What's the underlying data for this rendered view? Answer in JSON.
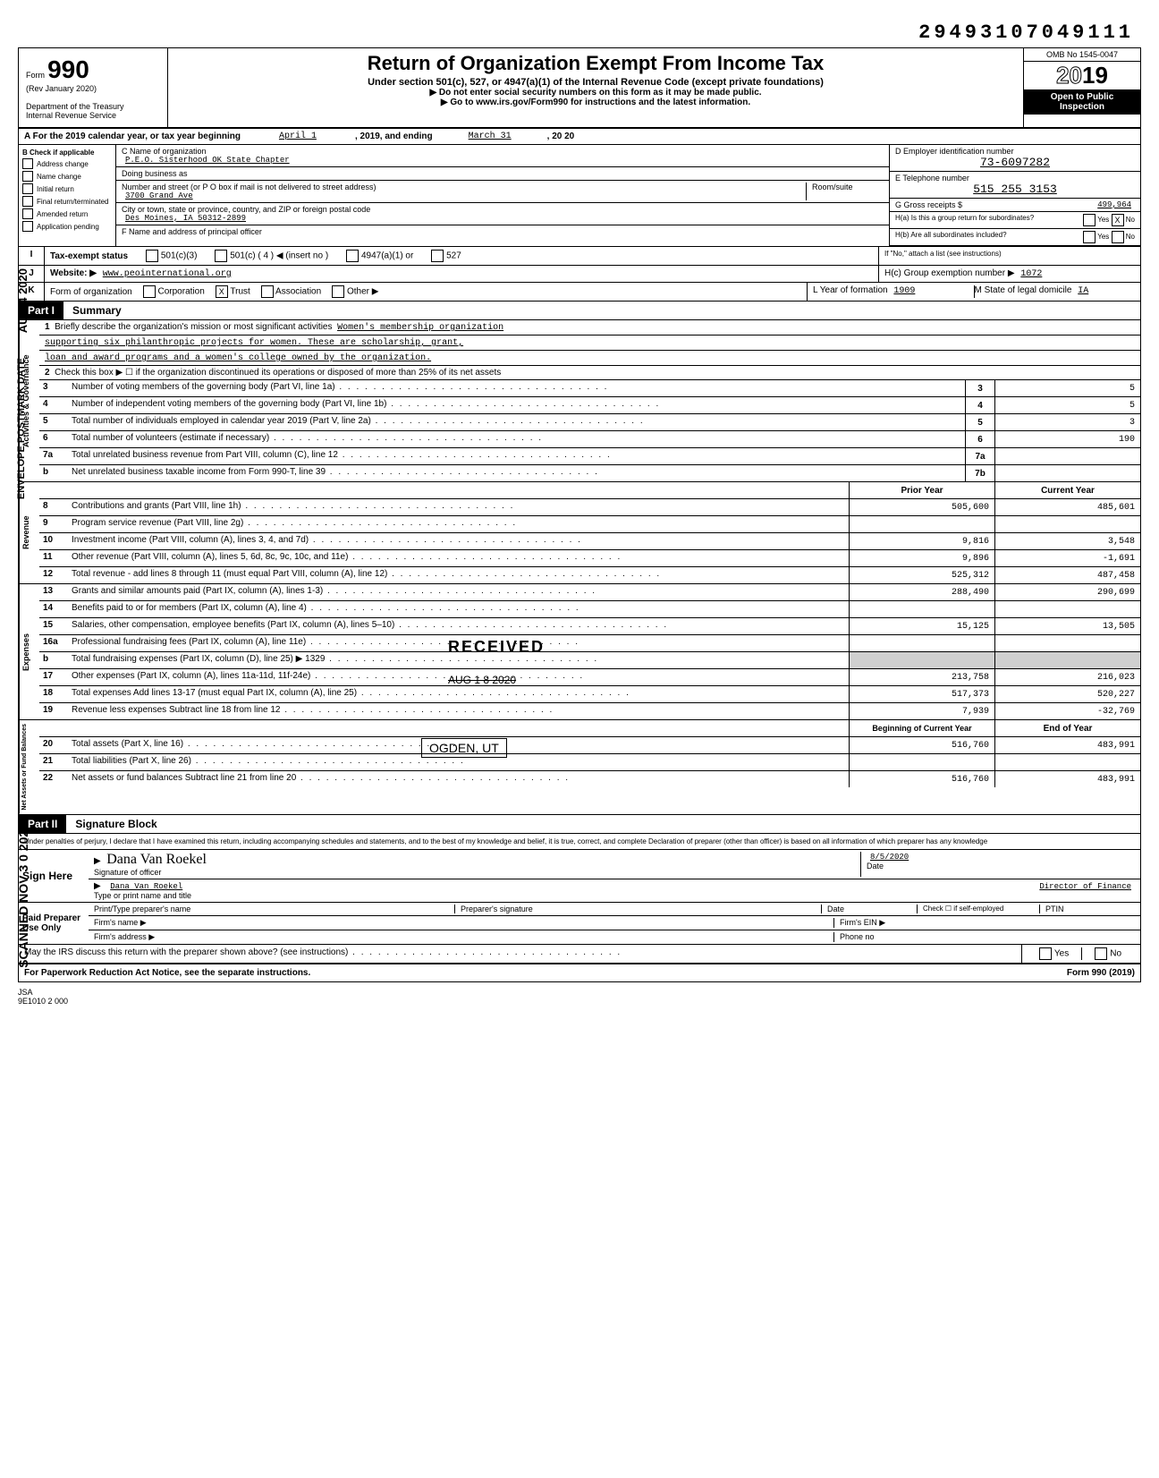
{
  "top_number": "29493107049111",
  "form": {
    "number": "990",
    "prefix": "Form",
    "rev": "(Rev January 2020)",
    "dept": "Department of the Treasury",
    "irs": "Internal Revenue Service"
  },
  "header": {
    "title": "Return of Organization Exempt From Income Tax",
    "subtitle": "Under section 501(c), 527, or 4947(a)(1) of the Internal Revenue Code (except private foundations)",
    "instr1": "▶ Do not enter social security numbers on this form as it may be made public.",
    "instr2": "▶ Go to www.irs.gov/Form990 for instructions and the latest information.",
    "omb": "OMB No 1545-0047",
    "year_outline": "20",
    "year_bold": "19",
    "open1": "Open to Public",
    "open2": "Inspection"
  },
  "section_a": {
    "label": "A For the 2019 calendar year, or tax year beginning",
    "begin": "April 1",
    "mid": ", 2019, and ending",
    "end": "March 31",
    "endyear": ", 20 20"
  },
  "section_b": {
    "label": "B Check if applicable",
    "opts": [
      "Address change",
      "Name change",
      "Initial return",
      "Final return/terminated",
      "Amended return",
      "Application pending"
    ]
  },
  "section_c": {
    "name_label": "C Name of organization",
    "name": "P.E.O. Sisterhood OK State Chapter",
    "dba_label": "Doing business as",
    "addr_label": "Number and street (or P O box if mail is not delivered to street address)",
    "room_label": "Room/suite",
    "addr": "3700 Grand Ave",
    "city_label": "City or town, state or province, country, and ZIP or foreign postal code",
    "city": "Des Moines, IA  50312-2899",
    "officer_label": "F Name and address of principal officer"
  },
  "section_d": {
    "ein_label": "D Employer identification number",
    "ein": "73-6097282",
    "phone_label": "E Telephone number",
    "phone": "515 255 3153",
    "gross_label": "G Gross receipts $",
    "gross": "499,964",
    "ha_label": "H(a) Is this a group return for subordinates?",
    "hb_label": "H(b) Are all subordinates included?",
    "hc_note": "If \"No,\" attach a list (see instructions)",
    "hc_label": "H(c) Group exemption number ▶",
    "hc_val": "1072",
    "yes": "Yes",
    "no": "No",
    "x": "X"
  },
  "section_i": {
    "label": "I",
    "text": "Tax-exempt status",
    "opt1": "501(c)(3)",
    "opt2": "501(c) ( 4 ) ◀ (insert no )",
    "opt3": "4947(a)(1) or",
    "opt4": "527"
  },
  "section_j": {
    "label": "J",
    "text": "Website: ▶",
    "val": "www.peointernational.org"
  },
  "section_k": {
    "label": "K",
    "text": "Form of organization",
    "opts": [
      "Corporation",
      "Trust",
      "Association",
      "Other ▶"
    ],
    "trust_x": "X",
    "l_label": "L Year of formation",
    "l_val": "1909",
    "m_label": "M State of legal domicile",
    "m_val": "IA"
  },
  "part1": {
    "tab": "Part I",
    "title": "Summary"
  },
  "governance": {
    "label": "Activities & Governance",
    "line1_label": "Briefly describe the organization's mission or most significant activities",
    "mission1": "Women's membership organization",
    "mission2": "supporting six philanthropic projects for women.  These are scholarship, grant,",
    "mission3": "loan and award programs and a women's college owned by the organization.",
    "line2": "Check this box ▶ ☐ if the organization discontinued its operations or disposed of more than 25% of its net assets",
    "lines": [
      {
        "num": "3",
        "desc": "Number of voting members of the governing body (Part VI, line 1a)",
        "box": "3",
        "val": "5"
      },
      {
        "num": "4",
        "desc": "Number of independent voting members of the governing body (Part VI, line 1b)",
        "box": "4",
        "val": "5"
      },
      {
        "num": "5",
        "desc": "Total number of individuals employed in calendar year 2019 (Part V, line 2a)",
        "box": "5",
        "val": "3"
      },
      {
        "num": "6",
        "desc": "Total number of volunteers (estimate if necessary)",
        "box": "6",
        "val": "190"
      },
      {
        "num": "7a",
        "desc": "Total unrelated business revenue from Part VIII, column (C), line 12",
        "box": "7a",
        "val": ""
      },
      {
        "num": "b",
        "desc": "Net unrelated business taxable income from Form 990-T, line 39",
        "box": "7b",
        "val": ""
      }
    ]
  },
  "revenue": {
    "label": "Revenue",
    "prior_header": "Prior Year",
    "current_header": "Current Year",
    "lines": [
      {
        "num": "8",
        "desc": "Contributions and grants (Part VIII, line 1h)",
        "prior": "505,600",
        "current": "485,601"
      },
      {
        "num": "9",
        "desc": "Program service revenue (Part VIII, line 2g)",
        "prior": "",
        "current": ""
      },
      {
        "num": "10",
        "desc": "Investment income (Part VIII, column (A), lines 3, 4, and 7d)",
        "prior": "9,816",
        "current": "3,548"
      },
      {
        "num": "11",
        "desc": "Other revenue (Part VIII, column (A), lines 5, 6d, 8c, 9c, 10c, and 11e)",
        "prior": "9,896",
        "current": "-1,691"
      },
      {
        "num": "12",
        "desc": "Total revenue - add lines 8 through 11 (must equal Part VIII, column (A), line 12)",
        "prior": "525,312",
        "current": "487,458"
      }
    ]
  },
  "expenses": {
    "label": "Expenses",
    "lines": [
      {
        "num": "13",
        "desc": "Grants and similar amounts paid (Part IX, column (A), lines 1-3)",
        "prior": "288,490",
        "current": "290,699"
      },
      {
        "num": "14",
        "desc": "Benefits paid to or for members (Part IX, column (A), line 4)",
        "prior": "",
        "current": ""
      },
      {
        "num": "15",
        "desc": "Salaries, other compensation, employee benefits (Part IX, column (A), lines 5–10)",
        "prior": "15,125",
        "current": "13,505"
      },
      {
        "num": "16a",
        "desc": "Professional fundraising fees (Part IX, column (A), line 11e)",
        "prior": "",
        "current": ""
      },
      {
        "num": "b",
        "desc": "Total fundraising expenses (Part IX, column (D), line 25) ▶ 1329",
        "prior": "",
        "current": "",
        "shaded": true
      },
      {
        "num": "17",
        "desc": "Other expenses (Part IX, column (A), lines 11a-11d, 11f-24e)",
        "prior": "213,758",
        "current": "216,023"
      },
      {
        "num": "18",
        "desc": "Total expenses Add lines 13-17 (must equal Part IX, column (A), line 25)",
        "prior": "517,373",
        "current": "520,227"
      },
      {
        "num": "19",
        "desc": "Revenue less expenses Subtract line 18 from line 12",
        "prior": "7,939",
        "current": "-32,769"
      }
    ],
    "stamp_received": "RECEIVED",
    "stamp_date": "AUG 1 8 2020",
    "stamp_loc": "OGDEN, UT"
  },
  "netassets": {
    "label": "Net Assets or Fund Balances",
    "begin_header": "Beginning of Current Year",
    "end_header": "End of Year",
    "lines": [
      {
        "num": "20",
        "desc": "Total assets (Part X, line 16)",
        "prior": "516,760",
        "current": "483,991"
      },
      {
        "num": "21",
        "desc": "Total liabilities (Part X, line 26)",
        "prior": "",
        "current": ""
      },
      {
        "num": "22",
        "desc": "Net assets or fund balances Subtract line 21 from line 20",
        "prior": "516,760",
        "current": "483,991"
      }
    ]
  },
  "part2": {
    "tab": "Part II",
    "title": "Signature Block"
  },
  "sig": {
    "disclaimer": "Under penalties of perjury, I declare that I have examined this return, including accompanying schedules and statements, and to the best of my knowledge and belief, it is true, correct, and complete Declaration of preparer (other than officer) is based on all information of which preparer has any knowledge",
    "sign_here": "Sign Here",
    "sig_label": "Signature of officer",
    "sig_script": "Dana Van Roekel",
    "date_label": "Date",
    "date": "8/5/2020",
    "name_label": "Type or print name and title",
    "name": "Dana Van Roekel",
    "title": "Director of Finance",
    "paid": "Paid Preparer Use Only",
    "prep_name_label": "Print/Type preparer's name",
    "prep_sig_label": "Preparer's signature",
    "prep_date_label": "Date",
    "check_label": "Check ☐ if self-employed",
    "ptin_label": "PTIN",
    "firm_name_label": "Firm's name ▶",
    "firm_ein_label": "Firm's EIN ▶",
    "firm_addr_label": "Firm's address ▶",
    "phone_label": "Phone no",
    "discuss": "May the IRS discuss this return with the preparer shown above? (see instructions)",
    "yes": "Yes",
    "no": "No"
  },
  "footer": {
    "left": "For Paperwork Reduction Act Notice, see the separate instructions.",
    "right": "Form 990 (2019)"
  },
  "jsa": {
    "l1": "JSA",
    "l2": "9E1010 2 000"
  },
  "side": {
    "s1": "SCANNED NOV 3 0 2021",
    "s2": "ENVELOPE POSTMARK DATE",
    "s3": "AUG  4 2020"
  }
}
